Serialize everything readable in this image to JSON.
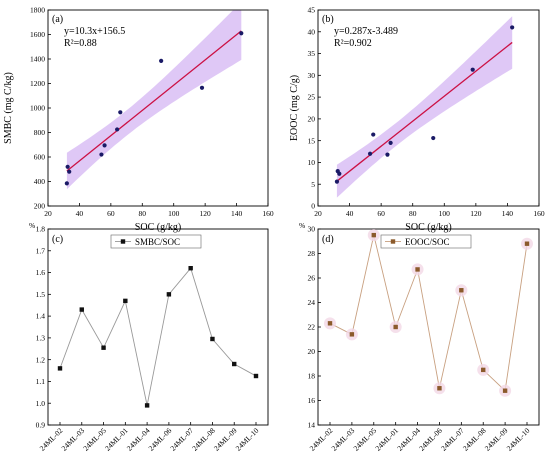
{
  "chart_data": [
    {
      "type": "scatter",
      "panel_label": "(a)",
      "xlabel": "SOC (g/kg)",
      "ylabel": "SMBC (mg C/kg)",
      "xlim": [
        20,
        160
      ],
      "ylim": [
        200,
        1800
      ],
      "xticks": [
        "20",
        "40",
        "60",
        "80",
        "100",
        "120",
        "140",
        "160"
      ],
      "yticks": [
        "200",
        "400",
        "600",
        "800",
        "1000",
        "1200",
        "1400",
        "1600",
        "1800"
      ],
      "equation": "y=10.3x+156.5",
      "r2": "R²=0.88",
      "fit": {
        "slope": 10.3,
        "intercept": 156.5,
        "x_range": [
          32,
          143
        ]
      },
      "band_color": "#c9a3f0",
      "line_color": "#cc1144",
      "points": [
        {
          "x": 32,
          "y": 385
        },
        {
          "x": 32.5,
          "y": 520
        },
        {
          "x": 33.5,
          "y": 480
        },
        {
          "x": 54,
          "y": 620
        },
        {
          "x": 56,
          "y": 695
        },
        {
          "x": 64,
          "y": 825
        },
        {
          "x": 66,
          "y": 965
        },
        {
          "x": 92,
          "y": 1385
        },
        {
          "x": 118,
          "y": 1165
        },
        {
          "x": 143,
          "y": 1610
        }
      ]
    },
    {
      "type": "scatter",
      "panel_label": "(b)",
      "xlabel": "SOC (g/kg)",
      "ylabel": "EOOC (mg C/g)",
      "xlim": [
        20,
        160
      ],
      "ylim": [
        0,
        45
      ],
      "xticks": [
        "20",
        "40",
        "60",
        "80",
        "100",
        "120",
        "140",
        "160"
      ],
      "yticks": [
        "0",
        "5",
        "10",
        "15",
        "20",
        "25",
        "30",
        "35",
        "40",
        "45"
      ],
      "equation": "y=0.287x-3.489",
      "r2": "R²=0.902",
      "fit": {
        "slope": 0.287,
        "intercept": -3.489,
        "x_range": [
          32,
          143
        ]
      },
      "band_color": "#c9a3f0",
      "line_color": "#cc1144",
      "points": [
        {
          "x": 32,
          "y": 5.6
        },
        {
          "x": 32.5,
          "y": 8.0
        },
        {
          "x": 33.5,
          "y": 7.4
        },
        {
          "x": 53,
          "y": 12.0
        },
        {
          "x": 55,
          "y": 16.4
        },
        {
          "x": 64,
          "y": 11.8
        },
        {
          "x": 66,
          "y": 14.5
        },
        {
          "x": 93,
          "y": 15.6
        },
        {
          "x": 118,
          "y": 31.3
        },
        {
          "x": 143,
          "y": 41.0
        }
      ]
    },
    {
      "type": "line",
      "panel_label": "(c)",
      "unit": "%",
      "legend": "SMBC/SOC",
      "categories": [
        "24ML-02",
        "24ML-03",
        "24ML-05",
        "24ML-01",
        "24ML-04",
        "24ML-06",
        "24ML-07",
        "24ML-08",
        "24ML-09",
        "24ML-10"
      ],
      "values": [
        1.16,
        1.43,
        1.255,
        1.47,
        0.99,
        1.5,
        1.62,
        1.295,
        1.18,
        1.125
      ],
      "ylim": [
        0.9,
        1.8
      ],
      "yticks": [
        "0.9",
        "1.0",
        "1.1",
        "1.2",
        "1.3",
        "1.4",
        "1.5",
        "1.6",
        "1.7",
        "1.8"
      ],
      "line_color": "#999999",
      "marker_color": "#111111"
    },
    {
      "type": "line",
      "panel_label": "(d)",
      "unit": "%",
      "legend": "EOOC/SOC",
      "categories": [
        "24ML-02",
        "24ML-03",
        "24ML-05",
        "24ML-01",
        "24ML-04",
        "24ML-06",
        "24ML-07",
        "24ML-08",
        "24ML-09",
        "24ML-10"
      ],
      "values": [
        22.3,
        21.4,
        29.5,
        22.0,
        26.7,
        17.0,
        25.0,
        18.5,
        16.8,
        28.8
      ],
      "ylim": [
        14,
        30
      ],
      "yticks": [
        "14",
        "16",
        "18",
        "20",
        "22",
        "24",
        "26",
        "28",
        "30"
      ],
      "line_color": "#c8a080",
      "marker_color": "#8b5a2b"
    }
  ]
}
